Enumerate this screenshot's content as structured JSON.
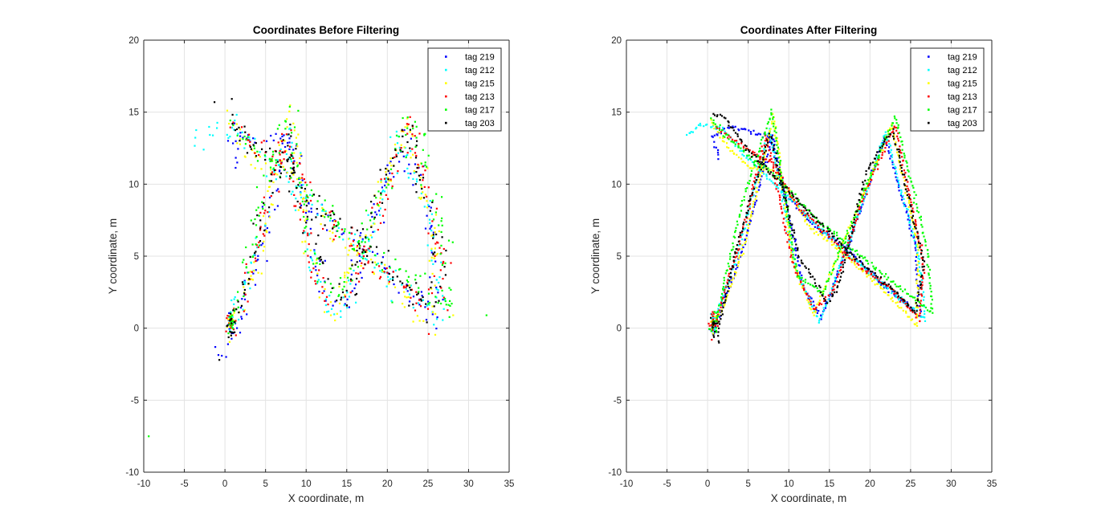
{
  "chart_data": [
    {
      "type": "scatter",
      "title": "Coordinates Before Filtering",
      "xlabel": "X coordinate, m",
      "ylabel": "Y coordinate, m",
      "xlim": [
        -10,
        35
      ],
      "ylim": [
        -10,
        20
      ],
      "xticks": [
        -10,
        -5,
        0,
        5,
        10,
        15,
        20,
        25,
        30,
        35
      ],
      "yticks": [
        -10,
        -5,
        0,
        5,
        10,
        15,
        20
      ],
      "grid": true,
      "legend_position": "top-right",
      "noise": 0.45,
      "series": [
        {
          "name": "tag 219",
          "color": "#0000ff",
          "path": [
            [
              1.4,
              11.7
            ],
            [
              0.6,
              13.3
            ],
            [
              3.5,
              13.4
            ],
            [
              7.4,
              13.3
            ],
            [
              9.6,
              9.2
            ],
            [
              13.6,
              6.9
            ],
            [
              17.5,
              5.4
            ],
            [
              21.8,
              2.9
            ],
            [
              26.0,
              0.9
            ],
            [
              25.5,
              6.0
            ],
            [
              22.3,
              13.3
            ],
            [
              19.0,
              8.5
            ],
            [
              14.0,
              0.7
            ],
            [
              11.8,
              2.8
            ],
            [
              8.1,
              13.4
            ],
            [
              4.4,
              5.6
            ],
            [
              1.0,
              -0.8
            ],
            [
              -1.8,
              -2.6
            ]
          ]
        },
        {
          "name": "tag 212",
          "color": "#00ffff",
          "path": [
            [
              -3.8,
              13.3
            ],
            [
              -0.7,
              13.9
            ],
            [
              1.8,
              14.0
            ],
            [
              4.5,
              12.3
            ],
            [
              8.8,
              9.8
            ],
            [
              13.2,
              7.3
            ],
            [
              17.4,
              5.1
            ],
            [
              22.1,
              2.8
            ],
            [
              26.8,
              0.6
            ],
            [
              26.0,
              5.3
            ],
            [
              21.9,
              13.6
            ],
            [
              18.3,
              7.4
            ],
            [
              13.8,
              0.4
            ],
            [
              10.8,
              4.2
            ],
            [
              7.6,
              13.8
            ],
            [
              3.6,
              4.9
            ],
            [
              0.8,
              0.6
            ]
          ]
        },
        {
          "name": "tag 215",
          "color": "#ffff00",
          "path": [
            [
              0.6,
              14.4
            ],
            [
              2.4,
              12.8
            ],
            [
              5.0,
              11.3
            ],
            [
              8.6,
              10.8
            ],
            [
              12.6,
              7.0
            ],
            [
              16.7,
              5.2
            ],
            [
              21.0,
              3.0
            ],
            [
              25.4,
              0.1
            ],
            [
              25.9,
              5.8
            ],
            [
              22.6,
              14.1
            ],
            [
              18.8,
              8.8
            ],
            [
              13.0,
              0.9
            ],
            [
              10.5,
              4.6
            ],
            [
              8.1,
              14.8
            ],
            [
              4.7,
              6.1
            ],
            [
              1.7,
              1.1
            ],
            [
              0.4,
              0.4
            ]
          ]
        },
        {
          "name": "tag 213",
          "color": "#ff0000",
          "path": [
            [
              1.0,
              14.0
            ],
            [
              4.3,
              12.6
            ],
            [
              8.2,
              11.4
            ],
            [
              10.9,
              8.6
            ],
            [
              14.7,
              6.5
            ],
            [
              18.8,
              4.3
            ],
            [
              22.8,
              2.6
            ],
            [
              26.1,
              0.6
            ],
            [
              26.6,
              4.6
            ],
            [
              23.1,
              14.1
            ],
            [
              19.5,
              9.6
            ],
            [
              15.3,
              2.4
            ],
            [
              13.1,
              1.3
            ],
            [
              10.6,
              4.3
            ],
            [
              7.2,
              13.4
            ],
            [
              3.9,
              5.9
            ],
            [
              1.2,
              0.0
            ]
          ]
        },
        {
          "name": "tag 217",
          "color": "#00ff00",
          "path": [
            [
              0.4,
              14.5
            ],
            [
              4.1,
              12.4
            ],
            [
              8.4,
              10.6
            ],
            [
              12.8,
              7.9
            ],
            [
              17.2,
              5.8
            ],
            [
              21.5,
              3.8
            ],
            [
              26.5,
              1.6
            ],
            [
              27.7,
              1.0
            ],
            [
              27.1,
              5.4
            ],
            [
              23.1,
              14.7
            ],
            [
              18.7,
              8.7
            ],
            [
              14.2,
              2.4
            ],
            [
              11.0,
              3.7
            ],
            [
              7.9,
              15.1
            ],
            [
              4.2,
              8.6
            ],
            [
              1.2,
              0.9
            ],
            [
              0.6,
              0.3
            ]
          ]
        },
        {
          "name": "tag 203",
          "color": "#000000",
          "path": [
            [
              0.7,
              15.3
            ],
            [
              2.0,
              13.3
            ],
            [
              5.4,
              12.1
            ],
            [
              8.8,
              10.2
            ],
            [
              13.1,
              7.7
            ],
            [
              17.6,
              5.2
            ],
            [
              21.6,
              3.3
            ],
            [
              25.4,
              1.1
            ],
            [
              26.6,
              4.6
            ],
            [
              22.8,
              13.8
            ],
            [
              19.5,
              10.8
            ],
            [
              15.9,
              2.6
            ],
            [
              14.7,
              1.8
            ],
            [
              11.3,
              4.9
            ],
            [
              7.7,
              13.5
            ],
            [
              3.8,
              6.1
            ],
            [
              1.4,
              0.2
            ],
            [
              1.3,
              -0.5
            ]
          ]
        }
      ],
      "outliers": [
        {
          "series": "tag 217",
          "x": -9.4,
          "y": -7.5
        },
        {
          "series": "tag 217",
          "x": 32.2,
          "y": 0.9
        },
        {
          "series": "tag 217",
          "x": 20.6,
          "y": 1.8
        },
        {
          "series": "tag 212",
          "x": 14.7,
          "y": 1.6
        },
        {
          "series": "tag 212",
          "x": 20.5,
          "y": 1.9
        },
        {
          "series": "tag 219",
          "x": -1.2,
          "y": -1.3
        },
        {
          "series": "tag 203",
          "x": -1.3,
          "y": 15.7
        },
        {
          "series": "tag 203",
          "x": -0.7,
          "y": -2.2
        },
        {
          "series": "tag 213",
          "x": 25.1,
          "y": -0.4
        },
        {
          "series": "tag 215",
          "x": 28.1,
          "y": 0.9
        }
      ]
    },
    {
      "type": "scatter",
      "title": "Coordinates After Filtering",
      "xlabel": "X coordinate, m",
      "ylabel": "Y coordinate, m",
      "xlim": [
        -10,
        35
      ],
      "ylim": [
        -10,
        20
      ],
      "xticks": [
        -10,
        -5,
        0,
        5,
        10,
        15,
        20,
        25,
        30,
        35
      ],
      "yticks": [
        -10,
        -5,
        0,
        5,
        10,
        15,
        20
      ],
      "grid": true,
      "legend_position": "top-right",
      "noise": 0.08,
      "series": [
        {
          "name": "tag 219",
          "color": "#0000ff",
          "path": [
            [
              1.4,
              11.7
            ],
            [
              0.6,
              13.3
            ],
            [
              2.8,
              14.0
            ],
            [
              7.6,
              13.3
            ],
            [
              9.6,
              9.2
            ],
            [
              13.6,
              6.9
            ],
            [
              17.5,
              5.4
            ],
            [
              21.8,
              2.9
            ],
            [
              26.1,
              0.9
            ],
            [
              25.5,
              6.0
            ],
            [
              21.8,
              13.3
            ],
            [
              19.0,
              8.5
            ],
            [
              14.0,
              0.7
            ],
            [
              11.7,
              3.0
            ],
            [
              8.0,
              13.3
            ],
            [
              4.4,
              5.6
            ],
            [
              1.2,
              0.5
            ],
            [
              0.7,
              -0.5
            ]
          ]
        },
        {
          "name": "tag 212",
          "color": "#00ffff",
          "path": [
            [
              -2.6,
              13.4
            ],
            [
              -0.7,
              14.1
            ],
            [
              1.8,
              13.9
            ],
            [
              4.5,
              12.0
            ],
            [
              8.8,
              9.7
            ],
            [
              13.2,
              7.3
            ],
            [
              17.4,
              5.1
            ],
            [
              22.1,
              2.8
            ],
            [
              26.8,
              0.6
            ],
            [
              25.9,
              5.3
            ],
            [
              21.9,
              13.6
            ],
            [
              18.3,
              7.4
            ],
            [
              13.8,
              0.4
            ],
            [
              10.8,
              4.2
            ],
            [
              7.6,
              13.8
            ],
            [
              3.6,
              4.9
            ],
            [
              0.8,
              0.6
            ]
          ]
        },
        {
          "name": "tag 215",
          "color": "#ffff00",
          "path": [
            [
              0.4,
              14.4
            ],
            [
              2.4,
              12.6
            ],
            [
              5.0,
              11.3
            ],
            [
              8.6,
              10.8
            ],
            [
              12.6,
              7.0
            ],
            [
              16.7,
              5.2
            ],
            [
              21.0,
              3.0
            ],
            [
              25.8,
              0.2
            ],
            [
              25.9,
              5.8
            ],
            [
              22.6,
              14.1
            ],
            [
              18.8,
              8.8
            ],
            [
              13.0,
              0.9
            ],
            [
              10.5,
              4.6
            ],
            [
              8.1,
              14.8
            ],
            [
              4.7,
              6.1
            ],
            [
              1.7,
              1.1
            ],
            [
              0.4,
              0.4
            ]
          ]
        },
        {
          "name": "tag 213",
          "color": "#ff0000",
          "path": [
            [
              1.0,
              14.0
            ],
            [
              4.3,
              12.6
            ],
            [
              8.2,
              11.4
            ],
            [
              10.9,
              8.6
            ],
            [
              14.7,
              6.5
            ],
            [
              18.8,
              4.3
            ],
            [
              22.8,
              2.6
            ],
            [
              26.1,
              0.6
            ],
            [
              26.6,
              4.6
            ],
            [
              23.1,
              14.1
            ],
            [
              19.5,
              9.6
            ],
            [
              15.3,
              2.4
            ],
            [
              13.1,
              1.3
            ],
            [
              10.6,
              4.3
            ],
            [
              7.2,
              13.4
            ],
            [
              3.9,
              5.9
            ],
            [
              0.6,
              -0.3
            ]
          ]
        },
        {
          "name": "tag 217",
          "color": "#00ff00",
          "path": [
            [
              0.4,
              14.5
            ],
            [
              4.1,
              12.4
            ],
            [
              8.4,
              10.6
            ],
            [
              12.8,
              7.9
            ],
            [
              17.2,
              5.8
            ],
            [
              21.5,
              3.8
            ],
            [
              26.5,
              1.6
            ],
            [
              27.7,
              1.0
            ],
            [
              27.1,
              5.4
            ],
            [
              23.1,
              14.7
            ],
            [
              18.7,
              8.7
            ],
            [
              14.2,
              2.4
            ],
            [
              11.0,
              3.7
            ],
            [
              7.9,
              15.1
            ],
            [
              4.2,
              8.6
            ],
            [
              1.2,
              0.9
            ],
            [
              0.6,
              0.3
            ]
          ]
        },
        {
          "name": "tag 203",
          "color": "#000000",
          "path": [
            [
              0.7,
              14.9
            ],
            [
              2.0,
              14.7
            ],
            [
              5.4,
              12.1
            ],
            [
              8.8,
              10.2
            ],
            [
              13.1,
              7.7
            ],
            [
              17.6,
              5.2
            ],
            [
              21.6,
              3.3
            ],
            [
              25.6,
              1.1
            ],
            [
              26.6,
              4.6
            ],
            [
              22.8,
              13.8
            ],
            [
              19.5,
              10.8
            ],
            [
              15.9,
              2.6
            ],
            [
              14.7,
              1.8
            ],
            [
              11.3,
              4.9
            ],
            [
              7.7,
              13.5
            ],
            [
              3.8,
              6.1
            ],
            [
              1.4,
              0.2
            ],
            [
              1.3,
              -1.2
            ]
          ]
        }
      ],
      "outliers": []
    }
  ]
}
